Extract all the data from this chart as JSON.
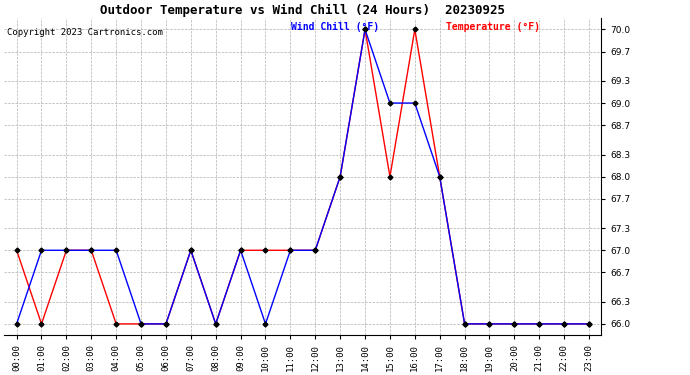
{
  "title": "Outdoor Temperature vs Wind Chill (24 Hours)  20230925",
  "copyright": "Copyright 2023 Cartronics.com",
  "legend_wind_chill": "Wind Chill (°F)",
  "legend_temperature": "Temperature (°F)",
  "wind_chill_color": "blue",
  "temperature_color": "red",
  "background_color": "#ffffff",
  "grid_color": "#b0b0b0",
  "ylim": [
    65.85,
    70.15
  ],
  "yticks": [
    66.0,
    66.3,
    66.7,
    67.0,
    67.3,
    67.7,
    68.0,
    68.3,
    68.7,
    69.0,
    69.3,
    69.7,
    70.0
  ],
  "hours": [
    "00:00",
    "01:00",
    "02:00",
    "03:00",
    "04:00",
    "05:00",
    "06:00",
    "07:00",
    "08:00",
    "09:00",
    "10:00",
    "11:00",
    "12:00",
    "13:00",
    "14:00",
    "15:00",
    "16:00",
    "17:00",
    "18:00",
    "19:00",
    "20:00",
    "21:00",
    "22:00",
    "23:00"
  ],
  "temperature": [
    67.0,
    66.0,
    67.0,
    67.0,
    66.0,
    66.0,
    66.0,
    67.0,
    66.0,
    67.0,
    67.0,
    67.0,
    67.0,
    68.0,
    70.0,
    68.0,
    70.0,
    68.0,
    66.0,
    66.0,
    66.0,
    66.0,
    66.0,
    66.0
  ],
  "wind_chill": [
    66.0,
    67.0,
    67.0,
    67.0,
    67.0,
    66.0,
    66.0,
    67.0,
    66.0,
    67.0,
    66.0,
    67.0,
    67.0,
    68.0,
    70.0,
    69.0,
    69.0,
    68.0,
    66.0,
    66.0,
    66.0,
    66.0,
    66.0,
    66.0
  ],
  "marker": "D",
  "marker_size": 2.5,
  "linewidth": 1.0,
  "title_fontsize": 9,
  "copyright_fontsize": 6.5,
  "legend_fontsize": 7,
  "tick_fontsize": 6.5,
  "ytick_fontsize": 6.5
}
